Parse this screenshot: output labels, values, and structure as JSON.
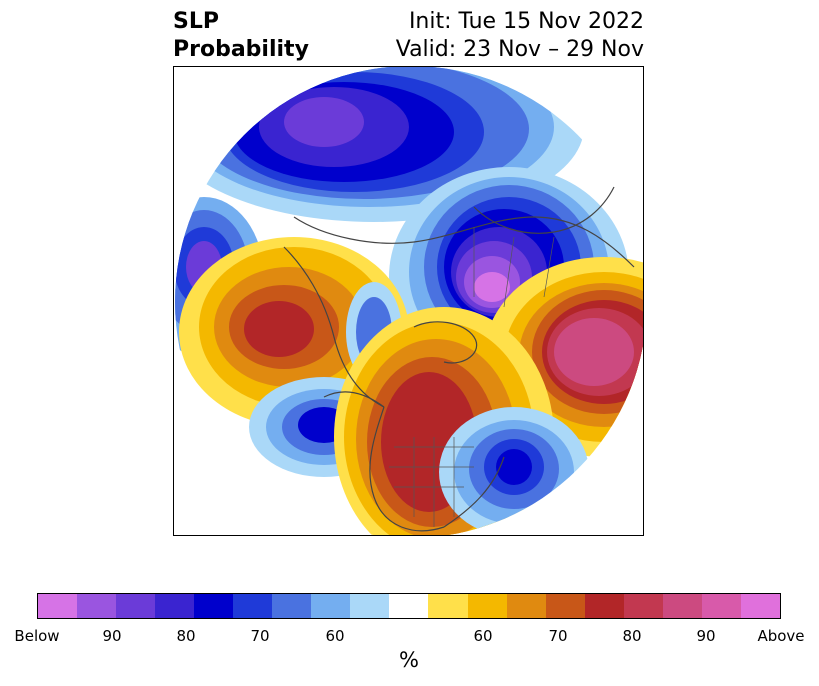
{
  "title": {
    "left_line1": "SLP",
    "left_line2": "Probability",
    "right_line1": "Init: Tue 15 Nov 2022",
    "right_line2": "Valid: 23 Nov – 29 Nov"
  },
  "map": {
    "projection": "north-polar-stereographic",
    "field": "sea-level pressure tercile probability",
    "features": [
      {
        "name": "below-center-siberia",
        "category": "below",
        "level": 90
      },
      {
        "name": "below-center-north-pacific",
        "category": "below",
        "level": 80
      },
      {
        "name": "below-center-west-asia",
        "category": "below",
        "level": "Below"
      },
      {
        "name": "below-center-canada-west",
        "category": "below",
        "level": 80
      },
      {
        "name": "below-center-atlantic",
        "category": "below",
        "level": 80
      },
      {
        "name": "above-center-east-asia-pacific",
        "category": "above",
        "level": 80
      },
      {
        "name": "above-center-europe",
        "category": "above",
        "level": 90
      },
      {
        "name": "above-center-north-america-east",
        "category": "above",
        "level": 80
      }
    ]
  },
  "colorbar": {
    "colors": [
      "#d673e6",
      "#9a55e0",
      "#6b3bd8",
      "#3a24d0",
      "#0000cc",
      "#1f3ad8",
      "#4a72e0",
      "#74aef0",
      "#aad8f8",
      "#ffffff",
      "#ffe04a",
      "#f4b800",
      "#e08a10",
      "#c85718",
      "#b22628",
      "#c23850",
      "#cc4a80",
      "#d85aaa",
      "#e070dc"
    ],
    "tick_labels": [
      "Below",
      "90",
      "80",
      "70",
      "60",
      "60",
      "70",
      "80",
      "90",
      "Above"
    ],
    "unit": "%"
  }
}
